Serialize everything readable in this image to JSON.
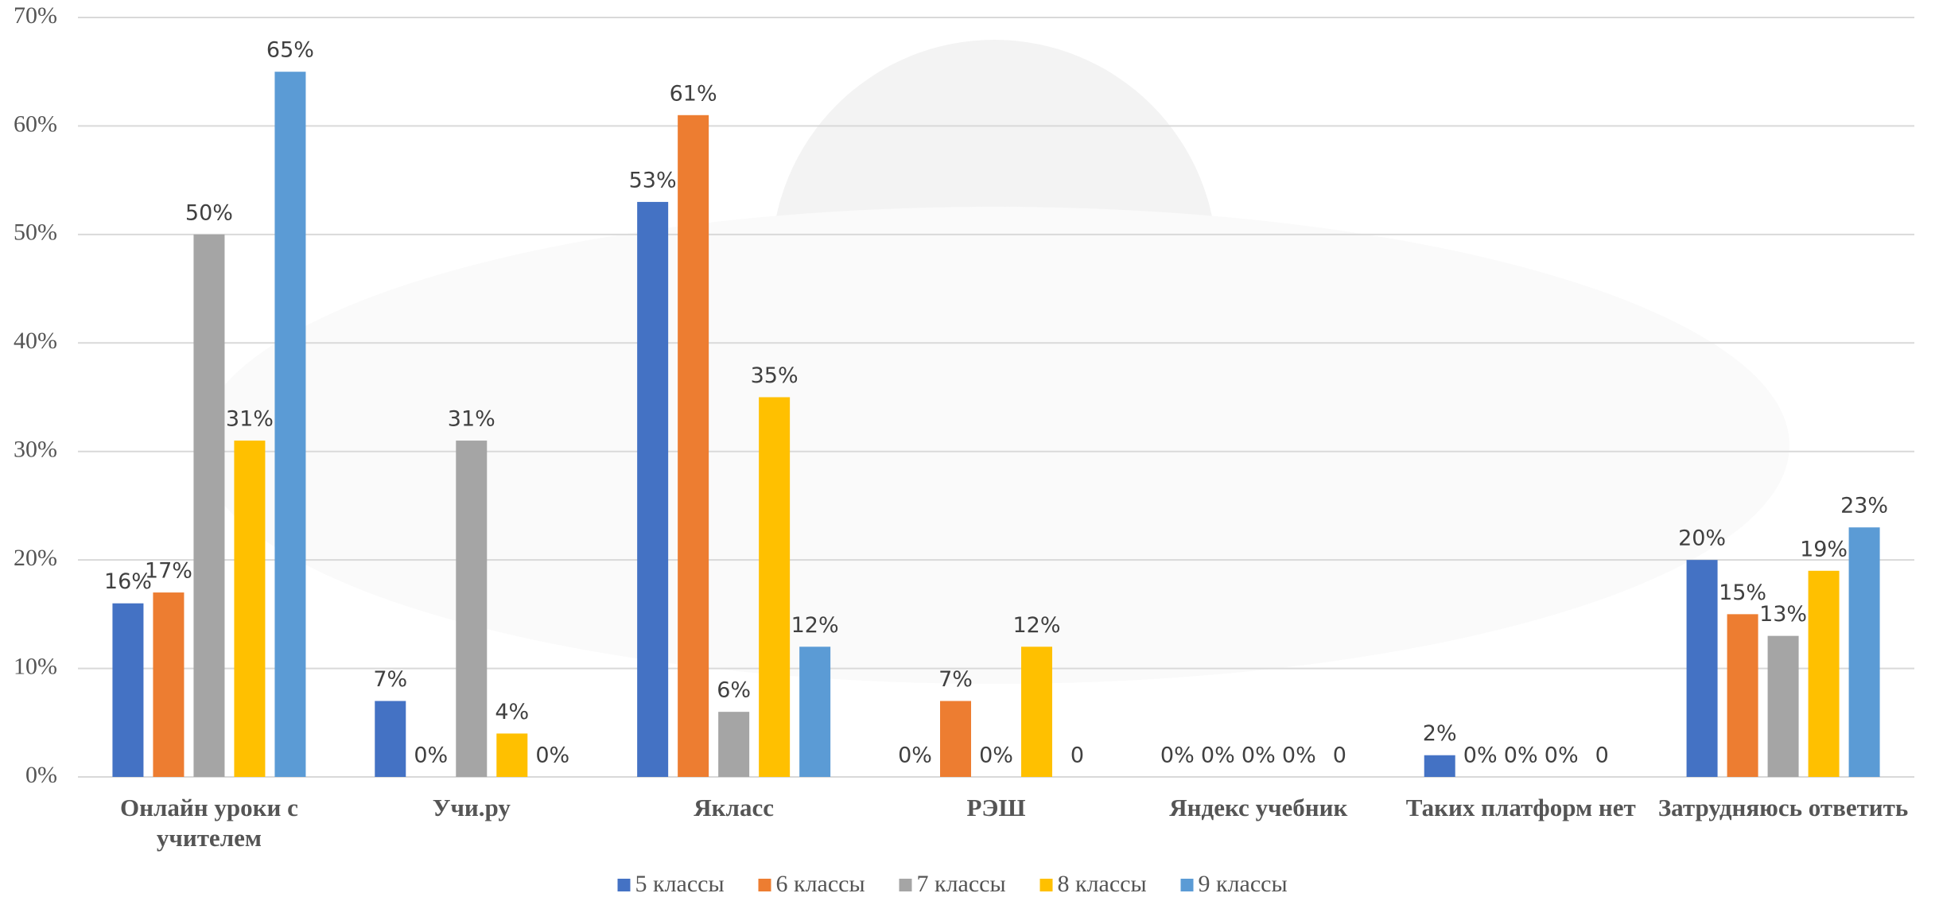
{
  "chart_data": {
    "type": "bar",
    "categories": [
      "Онлайн уроки с учителем",
      "Учи.ру",
      "Якласс",
      "РЭШ",
      "Яндекс учебник",
      "Таких платформ нет",
      "Затрудняюсь ответить"
    ],
    "series": [
      {
        "name": "5 классы",
        "color": "#4472c4",
        "values": [
          16,
          7,
          53,
          0,
          0,
          2,
          20
        ],
        "value_labels": [
          "16%",
          "7%",
          "53%",
          "0%",
          "0%",
          "2%",
          "20%"
        ]
      },
      {
        "name": "6 классы",
        "color": "#ed7d31",
        "values": [
          17,
          0,
          61,
          7,
          0,
          0,
          15
        ],
        "value_labels": [
          "17%",
          "0%",
          "61%",
          "7%",
          "0%",
          "0%",
          "15%"
        ]
      },
      {
        "name": "7 классы",
        "color": "#a5a5a5",
        "values": [
          50,
          31,
          6,
          0,
          0,
          0,
          13
        ],
        "value_labels": [
          "50%",
          "31%",
          "6%",
          "0%",
          "0%",
          "0%",
          "13%"
        ]
      },
      {
        "name": "8 классы",
        "color": "#ffc000",
        "values": [
          31,
          4,
          35,
          12,
          0,
          0,
          19
        ],
        "value_labels": [
          "31%",
          "4%",
          "35%",
          "12%",
          "0%",
          "0%",
          "19%"
        ]
      },
      {
        "name": "9 классы",
        "color": "#5b9bd5",
        "values": [
          65,
          0,
          12,
          0,
          0,
          0,
          23
        ],
        "value_labels": [
          "65%",
          "0%",
          "12%",
          "0",
          "0",
          "0",
          "23%"
        ]
      }
    ],
    "ylim": [
      0,
      70
    ],
    "yticks": [
      {
        "value": 0,
        "label": "0%"
      },
      {
        "value": 10,
        "label": "10%"
      },
      {
        "value": 20,
        "label": "20%"
      },
      {
        "value": 30,
        "label": "30%"
      },
      {
        "value": 40,
        "label": "40%"
      },
      {
        "value": 50,
        "label": "50%"
      },
      {
        "value": 60,
        "label": "60%"
      },
      {
        "value": 70,
        "label": "70%"
      }
    ],
    "grid": true,
    "legend": "bottom"
  }
}
